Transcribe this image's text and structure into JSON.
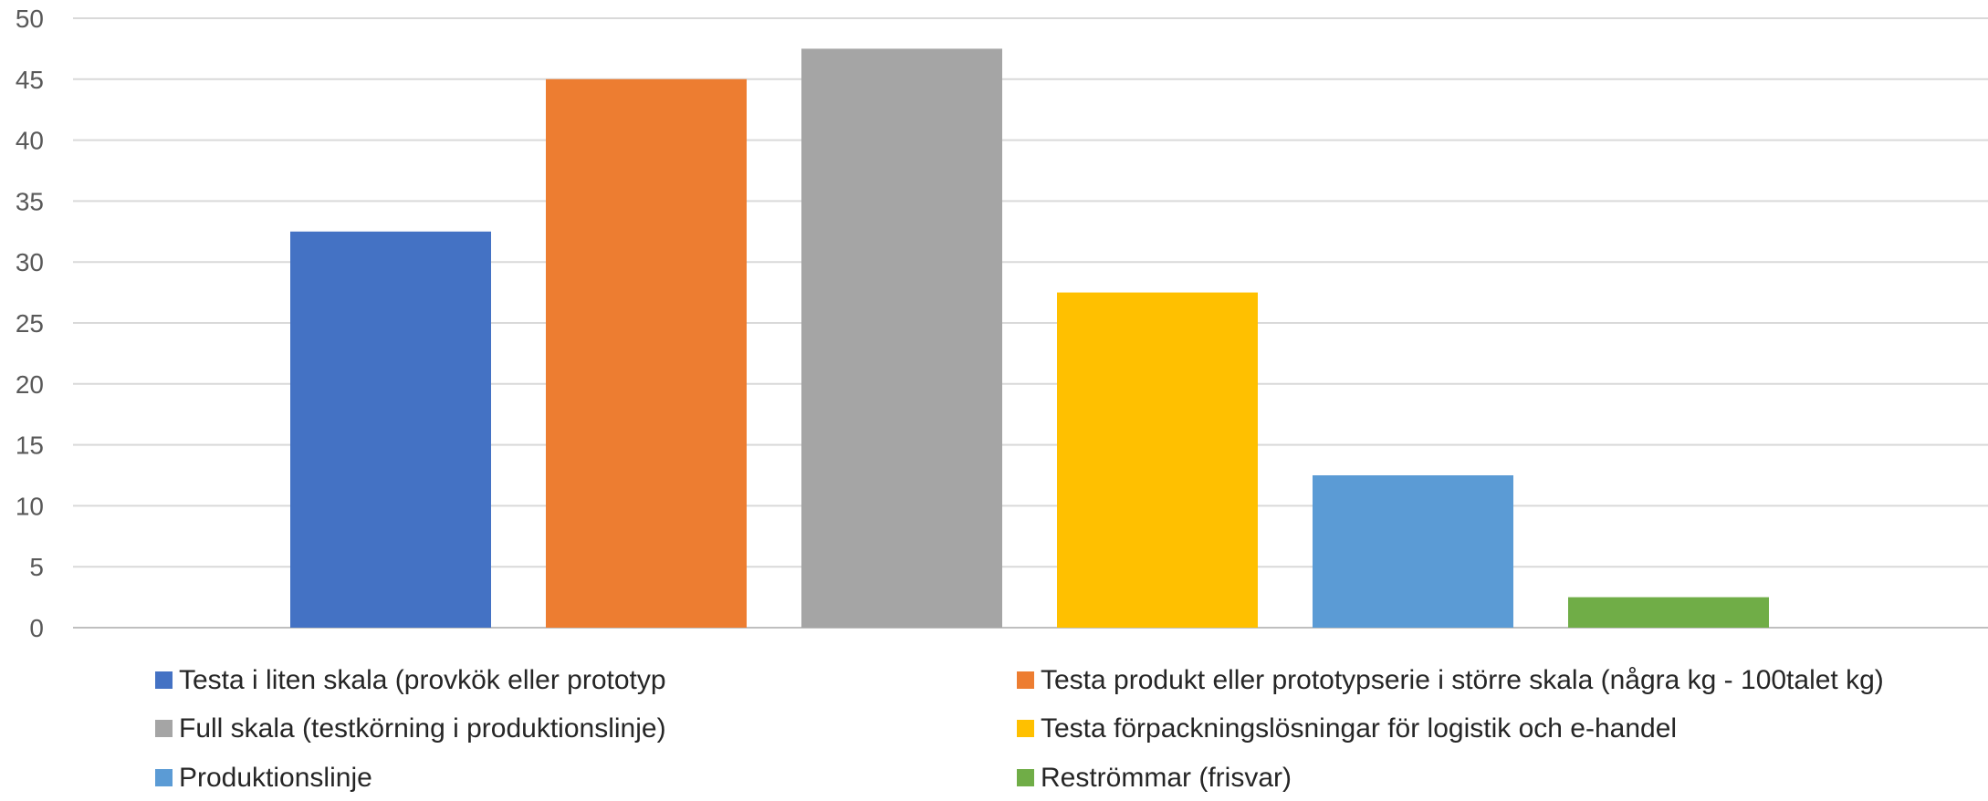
{
  "chart_data": {
    "type": "bar",
    "categories": [
      "Testa i liten skala (provkök eller prototyp",
      "Testa produkt eller prototypserie i större skala (några kg - 100talet kg)",
      "Full skala (testkörning i produktionslinje)",
      "Testa förpackningslösningar för logistik och e-handel",
      "Produktionslinje",
      "Reströmmar (frisvar)"
    ],
    "series": [
      {
        "values": [
          32.5,
          45,
          47.5,
          27.5,
          12.5,
          2.5
        ],
        "colors": [
          "#4472C4",
          "#ED7D31",
          "#A5A5A5",
          "#FFC000",
          "#5B9BD5",
          "#70AD47"
        ]
      }
    ],
    "ylim": [
      0,
      50
    ],
    "yticks": [
      0,
      5,
      10,
      15,
      20,
      25,
      30,
      35,
      40,
      45,
      50
    ],
    "grid": true,
    "legend_position": "bottom",
    "legend": [
      {
        "label": "Testa i liten skala (provkök eller prototyp",
        "color": "#4472C4"
      },
      {
        "label": "Testa produkt eller prototypserie i större skala (några kg - 100talet kg)",
        "color": "#ED7D31"
      },
      {
        "label": "Full skala (testkörning i produktionslinje)",
        "color": "#A5A5A5"
      },
      {
        "label": "Testa förpackningslösningar för logistik och e-handel",
        "color": "#FFC000"
      },
      {
        "label": "Produktionslinje",
        "color": "#5B9BD5"
      },
      {
        "label": "Reströmmar (frisvar)",
        "color": "#70AD47"
      }
    ],
    "gridline_color": "#D9D9D9",
    "axis_color": "#BFBFBF"
  }
}
